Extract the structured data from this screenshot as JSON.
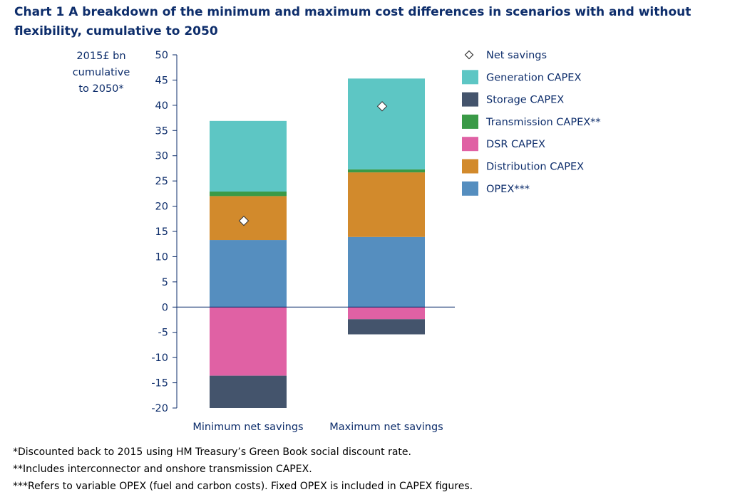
{
  "chart_data": {
    "type": "bar",
    "stacked": true,
    "title": "Chart 1 A breakdown of the minimum and maximum cost differences in scenarios with and without flexibility, cumulative to 2050",
    "ylabel": [
      "2015£ bn",
      "cumulative",
      "to 2050*"
    ],
    "ylim": [
      -20,
      50
    ],
    "yticks": [
      50,
      45,
      40,
      35,
      30,
      25,
      20,
      15,
      10,
      5,
      0,
      -5,
      -10,
      -15,
      -20
    ],
    "grid": false,
    "legend_position": "right",
    "categories": [
      "Minimum net savings",
      "Maximum net savings"
    ],
    "series": [
      {
        "name": "OPEX***",
        "color": "#558ebf",
        "values": [
          13.3,
          13.9
        ]
      },
      {
        "name": "Distribution CAPEX",
        "color": "#d28a2c",
        "values": [
          8.7,
          12.8
        ]
      },
      {
        "name": "DSR CAPEX",
        "color": "#e061a4",
        "values": [
          -13.6,
          -2.4
        ]
      },
      {
        "name": "Transmission CAPEX**",
        "color": "#3a9a47",
        "values": [
          0.9,
          0.6
        ]
      },
      {
        "name": "Storage CAPEX",
        "color": "#44546c",
        "values": [
          -6.4,
          -3.0
        ]
      },
      {
        "name": "Generation CAPEX",
        "color": "#5dc6c4",
        "values": [
          14.0,
          18.0
        ]
      }
    ],
    "net_savings": {
      "name": "Net savings",
      "values": [
        17.1,
        39.8
      ]
    },
    "legend_order": [
      "Net savings",
      "Generation CAPEX",
      "Storage CAPEX",
      "Transmission CAPEX**",
      "DSR CAPEX",
      "Distribution CAPEX",
      "OPEX***"
    ]
  },
  "footnotes": [
    "*Discounted back to 2015 using HM Treasury’s Green Book social discount rate.",
    "**Includes interconnector and onshore transmission CAPEX.",
    "***Refers to variable OPEX (fuel and carbon costs). Fixed OPEX is included in CAPEX figures."
  ],
  "colors": {
    "axis": "#0d2d6b",
    "text": "#0d2d6b"
  }
}
